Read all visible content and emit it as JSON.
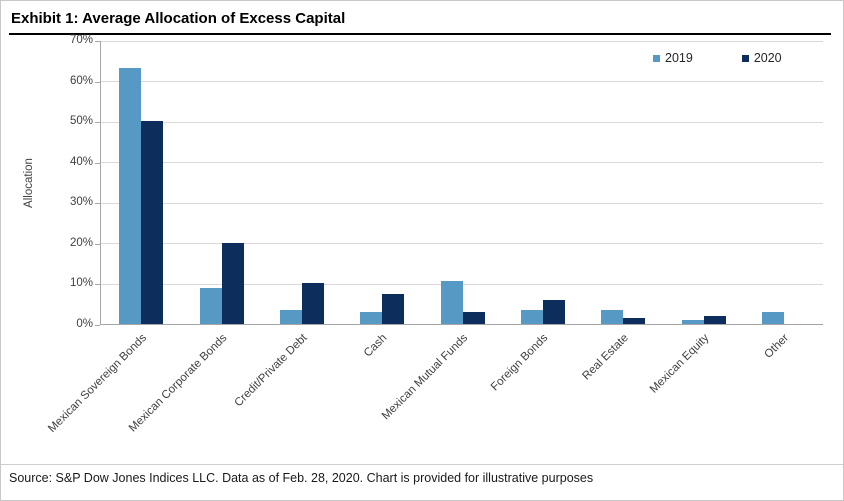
{
  "exhibit": {
    "title": "Exhibit 1: Average Allocation of Excess Capital",
    "source": "Source: S&P Dow Jones Indices LLC. Data as of Feb. 28, 2020. Chart is provided for illustrative purposes"
  },
  "chart_data": {
    "type": "bar",
    "title": "Exhibit 1: Average Allocation of Excess Capital",
    "xlabel": "",
    "ylabel": "Allocation",
    "ylim": [
      0,
      70
    ],
    "ytick_step": 10,
    "ytick_suffix": "%",
    "grid": true,
    "legend_position": "top-right-inside",
    "categories": [
      "Mexican Sovereign Bonds",
      "Mexican Corporate Bonds",
      "Credit/Private Debt",
      "Cash",
      "Mexican Mutual Funds",
      "Foreign Bonds",
      "Real Estate",
      "Mexican Equity",
      "Other"
    ],
    "series": [
      {
        "name": "2019",
        "color": "#5699C4",
        "values": [
          63,
          9,
          3.5,
          3,
          10.5,
          3.5,
          3.5,
          1,
          3
        ]
      },
      {
        "name": "2020",
        "color": "#0D2D5C",
        "values": [
          50,
          20,
          10,
          7.5,
          3,
          6,
          1.5,
          2,
          0
        ]
      }
    ]
  },
  "colors": {
    "series_2019": "#5699C4",
    "series_2020": "#0D2D5C",
    "gridline": "#d9d9d9",
    "axis_line": "#a6a6a6",
    "tick_label": "#404040",
    "title_text": "#000000",
    "divider": "#000000",
    "outer_border": "#c8c8c8"
  }
}
